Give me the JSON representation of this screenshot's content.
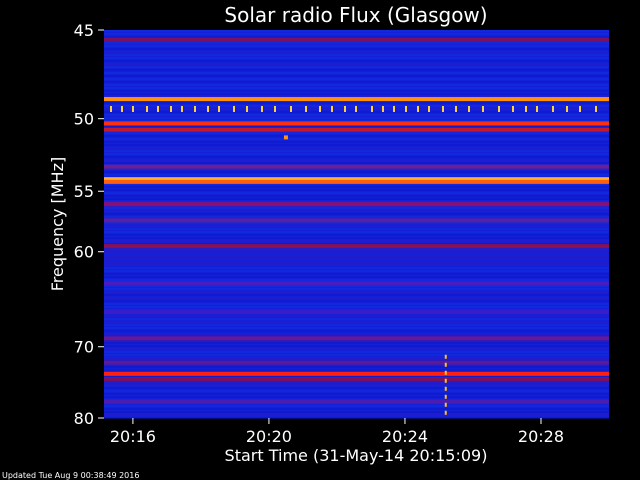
{
  "chart_data": {
    "type": "heatmap",
    "title": "Solar radio Flux (Glasgow)",
    "ylabel": "Frequency [MHz]",
    "xlabel": "Start Time (31-May-14 20:15:09)",
    "yticks": [
      "45",
      "50",
      "55",
      "60",
      "70",
      "80"
    ],
    "ytick_values": [
      45,
      50,
      55,
      60,
      70,
      80
    ],
    "xticks": [
      "20:16",
      "20:20",
      "20:24",
      "20:28"
    ],
    "xtick_minutes": [
      16,
      20,
      24,
      28
    ],
    "x_range_minutes": [
      15.15,
      30.0
    ],
    "y_range_mhz": [
      45,
      80
    ],
    "y_scale": "reciprocal",
    "background_color": "#1420d8",
    "bands": [
      {
        "freq": 45.5,
        "color": "#7a1060"
      },
      {
        "freq": 48.8,
        "color": "#ff9010"
      },
      {
        "freq": 50.3,
        "color": "#ff3010"
      },
      {
        "freq": 50.7,
        "color": "#c01830"
      },
      {
        "freq": 53.2,
        "color": "#6a2090"
      },
      {
        "freq": 54.1,
        "color": "#ffb030"
      },
      {
        "freq": 54.3,
        "color": "#ff6010"
      },
      {
        "freq": 56.0,
        "color": "#8a1070"
      },
      {
        "freq": 57.3,
        "color": "#5a20a0"
      },
      {
        "freq": 59.5,
        "color": "#8a1050"
      },
      {
        "freq": 63.0,
        "color": "#4a1cc0"
      },
      {
        "freq": 66.0,
        "color": "#3a1cc8"
      },
      {
        "freq": 69.0,
        "color": "#6a1890"
      },
      {
        "freq": 72.0,
        "color": "#5a1a98"
      },
      {
        "freq": 73.5,
        "color": "#ff2010"
      },
      {
        "freq": 74.2,
        "color": "#7a1060"
      },
      {
        "freq": 77.5,
        "color": "#4a1cb0"
      }
    ],
    "spike_freq": 49.4,
    "spike_color": "#ffd040",
    "burst": {
      "minute": 25.2,
      "from_mhz": 71.0,
      "to_mhz": 80.0,
      "color": "#ffc020"
    },
    "dot": {
      "minute": 20.5,
      "freq": 51.2,
      "color": "#ff9020"
    }
  },
  "footer": {
    "updated": "Updated Tue Aug  9 00:38:49 2016"
  }
}
